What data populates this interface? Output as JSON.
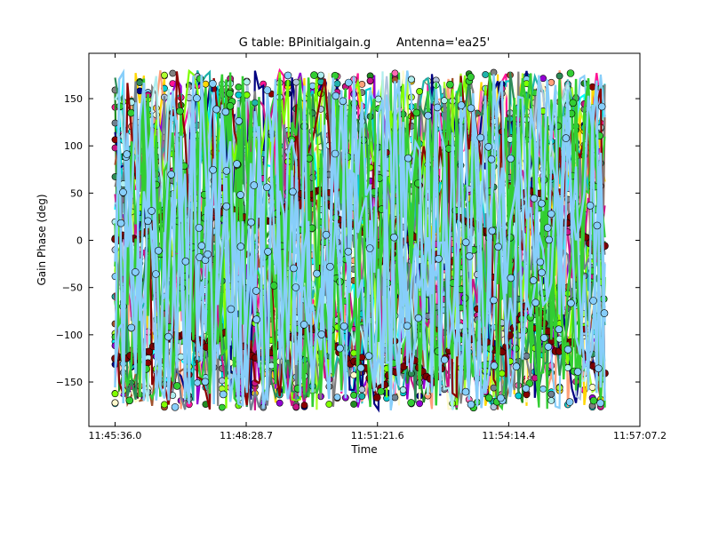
{
  "chart_data": {
    "type": "scatter",
    "title": "G table: BPinitialgain.g       Antenna='ea25'",
    "xlabel": "Time",
    "ylabel": "Gain Phase (deg)",
    "x_tick_labels": [
      "11:45:36.0",
      "11:48:28.7",
      "11:51:21.6",
      "11:54:14.4",
      "11:57:07.2"
    ],
    "x_tick_seconds": [
      0,
      172.7,
      345.6,
      518.4,
      691.2
    ],
    "xlim_seconds": [
      -34.5,
      691.2
    ],
    "data_x_range_seconds": [
      0,
      645
    ],
    "yticks": [
      -150,
      -100,
      -50,
      0,
      50,
      100,
      150
    ],
    "ylim": [
      -197,
      198
    ],
    "grid": false,
    "legend": "none",
    "marker": "circle",
    "series_colors": [
      "#00ffff",
      "#ff1493",
      "#ffd700",
      "#9400d3",
      "#228b22",
      "#ff69b4",
      "#00ced1",
      "#ffa07a",
      "#a0522d",
      "#000080",
      "#adff2f",
      "#fffacd",
      "#808080",
      "#87cefa",
      "#32cd32",
      "#20b2aa",
      "#c71585",
      "#b0c4de",
      "#7fff00",
      "#2e8b57",
      "#708090",
      "#afeeee",
      "#8b0000"
    ],
    "series_summary": [
      {
        "color": "#7b0000",
        "role": "dark-red trace (upper)",
        "x_seconds": [
          0,
          30,
          60,
          90,
          120,
          150,
          180,
          210,
          240,
          270,
          300,
          330,
          345,
          360,
          390,
          420,
          450,
          480,
          510,
          540,
          560,
          580,
          600,
          630,
          645
        ],
        "values": [
          3,
          2,
          25,
          30,
          22,
          38,
          15,
          22,
          45,
          52,
          18,
          10,
          -25,
          -15,
          5,
          -20,
          25,
          15,
          0,
          50,
          52,
          10,
          25,
          -10,
          -8
        ]
      },
      {
        "color": "#7b0000",
        "role": "dark-red trace (lower)",
        "x_seconds": [
          0,
          30,
          60,
          90,
          120,
          150,
          180,
          210,
          240,
          270,
          300,
          330,
          345,
          360,
          390,
          420,
          450,
          480,
          510,
          540,
          560,
          580,
          600,
          630,
          645
        ],
        "values": [
          -125,
          -125,
          -105,
          -100,
          -110,
          -95,
          -125,
          -115,
          -100,
          -90,
          -125,
          -135,
          -165,
          -145,
          -125,
          -150,
          -100,
          -105,
          -120,
          -70,
          -75,
          -120,
          -105,
          -135,
          -140
        ]
      },
      {
        "color": "#32cd32",
        "role": "bright green traces",
        "values_range": [
          -178,
          178
        ]
      },
      {
        "color": "#87cefa",
        "role": "light blue traces",
        "values_range": [
          -178,
          178
        ]
      }
    ]
  }
}
